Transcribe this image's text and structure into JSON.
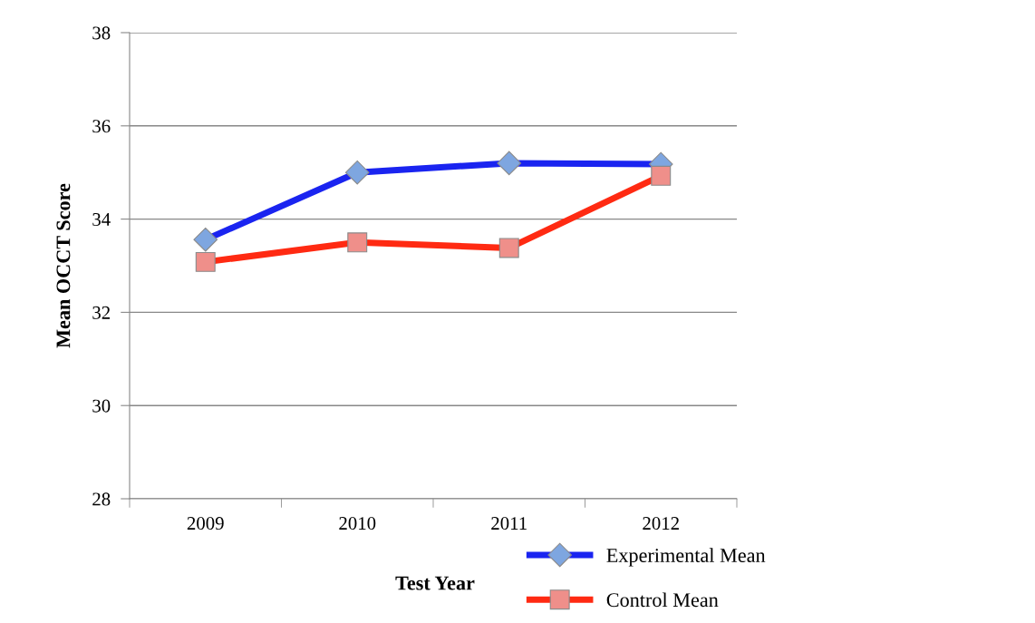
{
  "chart_data": {
    "type": "line",
    "xlabel": "Test Year",
    "ylabel": "Mean OCCT Score",
    "categories": [
      "2009",
      "2010",
      "2011",
      "2012"
    ],
    "series": [
      {
        "name": "Experimental Mean",
        "color": "#1a24f0",
        "marker": "diamond",
        "values": [
          33.56,
          35.0,
          35.2,
          35.18
        ]
      },
      {
        "name": "Control Mean",
        "color": "#ff2a12",
        "marker": "square",
        "values": [
          33.08,
          33.5,
          33.38,
          34.93
        ]
      }
    ],
    "ylim": [
      28,
      38
    ],
    "yticks": [
      28,
      30,
      32,
      34,
      36,
      38
    ],
    "grid": "y",
    "legend": "bottom right",
    "line_style": "solid"
  }
}
